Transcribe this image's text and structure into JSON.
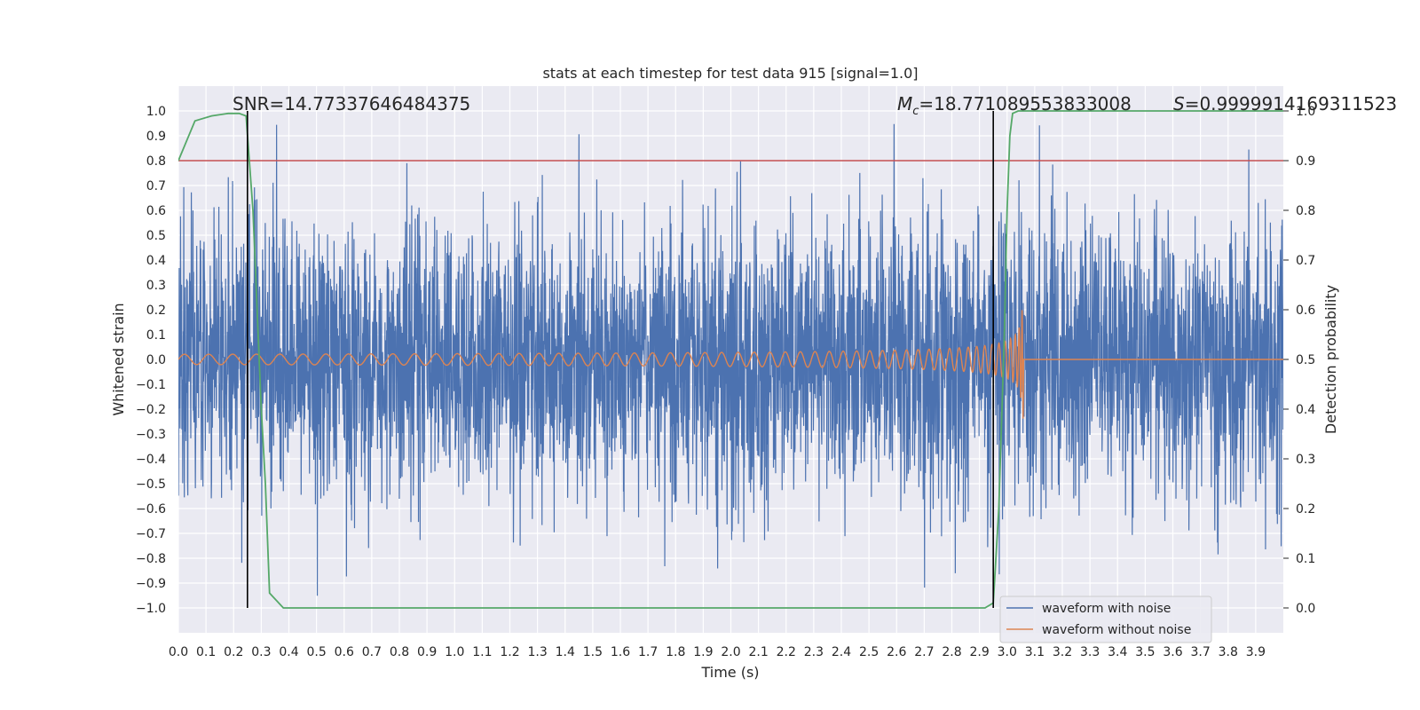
{
  "chart_data": {
    "type": "line",
    "title": "stats at each timestep for test data 915 [signal=1.0]",
    "xlabel": "Time (s)",
    "ylabel": "Whitened strain",
    "y2label": "Detection probability",
    "xlim": [
      0.0,
      4.0
    ],
    "ylim": [
      -1.1,
      1.1
    ],
    "y2lim": [
      -0.05,
      1.05
    ],
    "grid": true,
    "legend_position": "lower-right",
    "x_ticks": [
      "0.0",
      "0.1",
      "0.2",
      "0.3",
      "0.4",
      "0.5",
      "0.6",
      "0.7",
      "0.8",
      "0.9",
      "1.0",
      "1.1",
      "1.2",
      "1.3",
      "1.4",
      "1.5",
      "1.6",
      "1.7",
      "1.8",
      "1.9",
      "2.0",
      "2.1",
      "2.2",
      "2.3",
      "2.4",
      "2.5",
      "2.6",
      "2.7",
      "2.8",
      "2.9",
      "3.0",
      "3.1",
      "3.2",
      "3.3",
      "3.4",
      "3.5",
      "3.6",
      "3.7",
      "3.8",
      "3.9"
    ],
    "y_ticks": [
      "1.0",
      "0.9",
      "0.8",
      "0.7",
      "0.6",
      "0.5",
      "0.4",
      "0.3",
      "0.2",
      "0.1",
      "0.0",
      "−0.1",
      "−0.2",
      "−0.3",
      "−0.4",
      "−0.5",
      "−0.6",
      "−0.7",
      "−0.8",
      "−0.9",
      "−1.0"
    ],
    "y2_ticks": [
      "1.0",
      "0.9",
      "0.8",
      "0.7",
      "0.6",
      "0.5",
      "0.4",
      "0.3",
      "0.2",
      "0.1",
      "0.0"
    ],
    "annotations": {
      "snr": "SNR=14.77337646484375",
      "mc_symbol": "M",
      "mc_sub": "c",
      "mc_value": "=18.771089553833008",
      "s_symbol": "S",
      "s_value": "=0.9999914169311523"
    },
    "threshold": {
      "axis": "right",
      "y": 0.9,
      "color": "#c44e52"
    },
    "vertical_markers": [
      {
        "x": 0.25,
        "ymin": -1.0,
        "ymax": 1.0
      },
      {
        "x": 2.95,
        "ymin": -1.0,
        "ymax": 1.0
      }
    ],
    "series": [
      {
        "name": "waveform with noise",
        "color": "#4c72b0",
        "axis": "left",
        "kind": "noise",
        "amplitude_std": 0.28,
        "range": [
          -1.0,
          1.0
        ]
      },
      {
        "name": "waveform without noise",
        "color": "#dd8452",
        "axis": "left",
        "kind": "chirp",
        "x_end": 3.06,
        "peak": 0.6
      },
      {
        "name": "detection probability",
        "color": "#55a868",
        "axis": "right",
        "x": [
          0.0,
          0.06,
          0.12,
          0.18,
          0.22,
          0.245,
          0.27,
          0.3,
          0.315,
          0.33,
          0.38,
          2.92,
          2.95,
          2.97,
          2.99,
          3.0,
          3.01,
          3.02,
          3.04,
          3.1,
          4.0
        ],
        "y": [
          0.9,
          0.98,
          0.99,
          0.995,
          0.995,
          0.99,
          0.8,
          0.4,
          0.25,
          0.03,
          0.0,
          0.0,
          0.01,
          0.2,
          0.55,
          0.8,
          0.95,
          0.995,
          1.0,
          1.0,
          1.0
        ]
      }
    ]
  }
}
